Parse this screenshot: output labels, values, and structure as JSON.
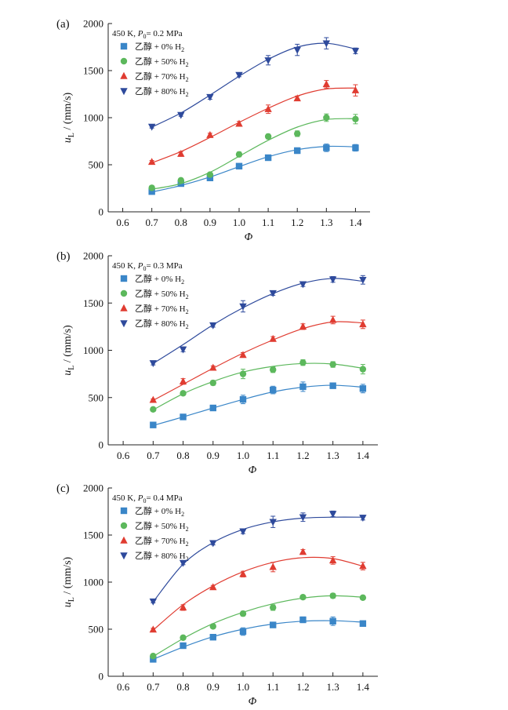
{
  "chart_data": [
    {
      "type": "scatter",
      "panel_label": "(a)",
      "condition": {
        "prefix": "450 K, ",
        "p_symbol": "P",
        "p_sub": "0",
        "p_value": "= 0.2 MPa"
      },
      "xlabel": "Φ",
      "ylabel": {
        "main": "u",
        "sub": "L",
        "unit": " / (mm/s)"
      },
      "xlim": [
        0.55,
        1.45
      ],
      "ylim": [
        0,
        2000
      ],
      "xticks": [
        "0.6",
        "0.7",
        "0.8",
        "0.9",
        "1.0",
        "1.1",
        "1.2",
        "1.3",
        "1.4"
      ],
      "yticks": [
        "0",
        "500",
        "1000",
        "1500",
        "2000"
      ],
      "x": [
        0.7,
        0.8,
        0.9,
        1.0,
        1.1,
        1.2,
        1.3,
        1.4
      ],
      "series": [
        {
          "name": "乙醇 + 0% H",
          "sub": "2",
          "color": "#3a86c8",
          "marker": "square",
          "values": [
            215,
            300,
            360,
            485,
            575,
            650,
            680,
            680
          ],
          "err": [
            15,
            10,
            10,
            25,
            25,
            30,
            40,
            35
          ],
          "fit": [
            210,
            280,
            370,
            480,
            585,
            660,
            695,
            690
          ]
        },
        {
          "name": "乙醇 + 50% H",
          "sub": "2",
          "color": "#5cb85c",
          "marker": "circle",
          "values": [
            255,
            335,
            395,
            610,
            800,
            830,
            1000,
            985
          ],
          "err": [
            10,
            15,
            15,
            25,
            25,
            30,
            40,
            50
          ],
          "fit": [
            240,
            300,
            420,
            590,
            760,
            900,
            980,
            990
          ]
        },
        {
          "name": "乙醇 + 70% H",
          "sub": "2",
          "color": "#e03c31",
          "marker": "triangle-up",
          "values": [
            530,
            615,
            815,
            935,
            1090,
            1205,
            1355,
            1290
          ],
          "err": [
            15,
            25,
            20,
            25,
            45,
            25,
            40,
            60
          ],
          "fit": [
            520,
            640,
            790,
            950,
            1100,
            1230,
            1305,
            1315
          ]
        },
        {
          "name": "乙醇 + 80% H",
          "sub": "2",
          "color": "#2e4a9c",
          "marker": "triangle-down",
          "values": [
            905,
            1030,
            1220,
            1455,
            1610,
            1720,
            1790,
            1710
          ],
          "err": [
            15,
            15,
            25,
            20,
            50,
            60,
            60,
            30
          ],
          "fit": [
            900,
            1050,
            1240,
            1440,
            1620,
            1750,
            1790,
            1730
          ]
        }
      ]
    },
    {
      "type": "scatter",
      "panel_label": "(b)",
      "condition": {
        "prefix": "450 K, ",
        "p_symbol": "P",
        "p_sub": "0",
        "p_value": "= 0.3 MPa"
      },
      "xlabel": "Φ",
      "ylabel": {
        "main": "u",
        "sub": "L",
        "unit": " / (mm/s)"
      },
      "xlim": [
        0.55,
        1.45
      ],
      "ylim": [
        0,
        2000
      ],
      "xticks": [
        "0.6",
        "0.7",
        "0.8",
        "0.9",
        "1.0",
        "1.1",
        "1.2",
        "1.3",
        "1.4"
      ],
      "yticks": [
        "0",
        "500",
        "1000",
        "1500",
        "2000"
      ],
      "x": [
        0.7,
        0.8,
        0.9,
        1.0,
        1.1,
        1.2,
        1.3,
        1.4
      ],
      "series": [
        {
          "name": "乙醇 + 0% H",
          "sub": "2",
          "color": "#3a86c8",
          "marker": "square",
          "values": [
            210,
            295,
            390,
            480,
            580,
            615,
            625,
            595
          ],
          "err": [
            15,
            10,
            15,
            45,
            40,
            50,
            25,
            45
          ],
          "fit": [
            205,
            295,
            390,
            480,
            560,
            610,
            630,
            610
          ]
        },
        {
          "name": "乙醇 + 50% H",
          "sub": "2",
          "color": "#5cb85c",
          "marker": "circle",
          "values": [
            375,
            545,
            655,
            750,
            795,
            870,
            850,
            800
          ],
          "err": [
            20,
            20,
            25,
            50,
            30,
            30,
            30,
            50
          ],
          "fit": [
            370,
            540,
            670,
            770,
            830,
            860,
            855,
            810
          ]
        },
        {
          "name": "乙醇 + 70% H",
          "sub": "2",
          "color": "#e03c31",
          "marker": "triangle-up",
          "values": [
            475,
            670,
            815,
            950,
            1120,
            1250,
            1320,
            1275
          ],
          "err": [
            10,
            30,
            20,
            25,
            25,
            30,
            40,
            45
          ],
          "fit": [
            470,
            640,
            810,
            970,
            1110,
            1230,
            1300,
            1290
          ]
        },
        {
          "name": "乙醇 + 80% H",
          "sub": "2",
          "color": "#2e4a9c",
          "marker": "triangle-down",
          "values": [
            865,
            1010,
            1265,
            1465,
            1605,
            1700,
            1750,
            1745
          ],
          "err": [
            20,
            25,
            20,
            60,
            25,
            25,
            30,
            45
          ],
          "fit": [
            860,
            1060,
            1270,
            1450,
            1600,
            1710,
            1760,
            1730
          ]
        }
      ]
    },
    {
      "type": "scatter",
      "panel_label": "(c)",
      "condition": {
        "prefix": "450 K, ",
        "p_symbol": "P",
        "p_sub": "0",
        "p_value": "= 0.4 MPa"
      },
      "xlabel": "Φ",
      "ylabel": {
        "main": "u",
        "sub": "L",
        "unit": " / (mm/s)"
      },
      "xlim": [
        0.55,
        1.45
      ],
      "ylim": [
        0,
        2000
      ],
      "xticks": [
        "0.6",
        "0.7",
        "0.8",
        "0.9",
        "1.0",
        "1.1",
        "1.2",
        "1.3",
        "1.4"
      ],
      "yticks": [
        "0",
        "500",
        "1000",
        "1500",
        "2000"
      ],
      "x": [
        0.7,
        0.8,
        0.9,
        1.0,
        1.1,
        1.2,
        1.3,
        1.4
      ],
      "series": [
        {
          "name": "乙醇 + 0% H",
          "sub": "2",
          "color": "#3a86c8",
          "marker": "square",
          "values": [
            180,
            325,
            415,
            475,
            545,
            600,
            585,
            560
          ],
          "err": [
            15,
            15,
            15,
            40,
            20,
            30,
            45,
            25
          ],
          "fit": [
            180,
            310,
            420,
            500,
            555,
            585,
            590,
            575
          ]
        },
        {
          "name": "乙醇 + 50% H",
          "sub": "2",
          "color": "#5cb85c",
          "marker": "circle",
          "values": [
            215,
            410,
            530,
            665,
            730,
            840,
            855,
            835
          ],
          "err": [
            15,
            20,
            20,
            25,
            30,
            20,
            25,
            20
          ],
          "fit": [
            210,
            400,
            560,
            680,
            770,
            830,
            855,
            840
          ]
        },
        {
          "name": "乙醇 + 70% H",
          "sub": "2",
          "color": "#e03c31",
          "marker": "triangle-up",
          "values": [
            495,
            730,
            945,
            1085,
            1160,
            1320,
            1230,
            1170
          ],
          "err": [
            15,
            30,
            20,
            30,
            50,
            25,
            40,
            40
          ],
          "fit": [
            490,
            760,
            960,
            1110,
            1210,
            1260,
            1250,
            1170
          ]
        },
        {
          "name": "乙醇 + 80% H",
          "sub": "2",
          "color": "#2e4a9c",
          "marker": "triangle-down",
          "values": [
            795,
            1205,
            1415,
            1540,
            1640,
            1690,
            1725,
            1685
          ],
          "err": [
            15,
            20,
            20,
            25,
            60,
            45,
            30,
            25
          ],
          "fit": [
            790,
            1190,
            1420,
            1560,
            1640,
            1680,
            1690,
            1690
          ]
        }
      ]
    }
  ]
}
